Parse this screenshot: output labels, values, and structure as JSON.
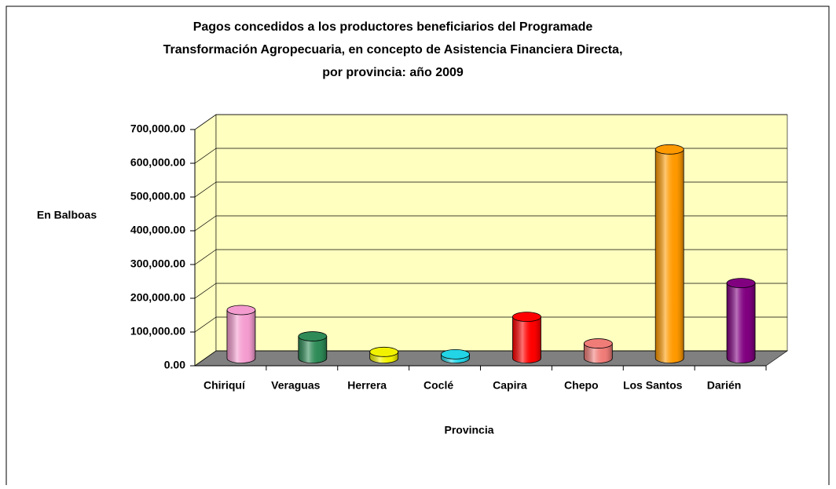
{
  "chart_data": {
    "type": "bar3d",
    "title": [
      "Pagos concedidos a los productores beneficiarios del Programade",
      "Transformación Agropecuaria, en concepto de Asistencia Financiera Directa,",
      "por provincia: año 2009"
    ],
    "y_label": "En Balboas",
    "x_label": "Provincia",
    "categories": [
      "Chiriquí",
      "Veraguas",
      "Herrera",
      "Coclé",
      "Capira",
      "Chepo",
      "Los Santos",
      "Darién"
    ],
    "values": [
      143000,
      65000,
      19000,
      12000,
      123000,
      44000,
      619000,
      223000
    ],
    "colors": [
      "#f49ccf",
      "#2e8b57",
      "#f2f200",
      "#22d4e6",
      "#ff0000",
      "#f07c78",
      "#ff9900",
      "#800080"
    ],
    "ylim": [
      0,
      700000
    ],
    "yticks": [
      {
        "value": 0,
        "label": "0.00"
      },
      {
        "value": 100000,
        "label": "100,000.00"
      },
      {
        "value": 200000,
        "label": "200,000.00"
      },
      {
        "value": 300000,
        "label": "300,000.00"
      },
      {
        "value": 400000,
        "label": "400,000.00"
      },
      {
        "value": 500000,
        "label": "500,000.00"
      },
      {
        "value": 600000,
        "label": "600,000.00"
      },
      {
        "value": 700000,
        "label": "700,000.00"
      }
    ],
    "grid": true
  }
}
